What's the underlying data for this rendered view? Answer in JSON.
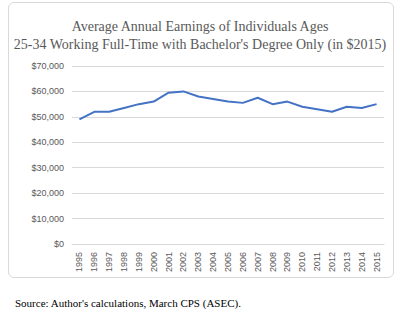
{
  "chart_data": {
    "type": "line",
    "title": "Average Annual Earnings of Individuals Ages\n25-34 Working Full-Time with Bachelor's Degree Only (in $2015)",
    "caption": "Source: Author's calculations, March CPS (ASEC).",
    "categories": [
      "1995",
      "1996",
      "1997",
      "1998",
      "1999",
      "2000",
      "2001",
      "2002",
      "2003",
      "2004",
      "2005",
      "2006",
      "2007",
      "2008",
      "2009",
      "2010",
      "2011",
      "2012",
      "2013",
      "2014",
      "2015"
    ],
    "values": [
      49000,
      52000,
      52000,
      53500,
      55000,
      56000,
      59500,
      60000,
      58000,
      57000,
      56000,
      55500,
      57500,
      55000,
      56000,
      54000,
      53000,
      52000,
      54000,
      53500,
      55000
    ],
    "color": "#4472c4",
    "ylim": [
      0,
      70000
    ],
    "yticks": [
      {
        "value": 0,
        "label": "$0"
      },
      {
        "value": 10000,
        "label": "$10,000"
      },
      {
        "value": 20000,
        "label": "$20,000"
      },
      {
        "value": 30000,
        "label": "$30,000"
      },
      {
        "value": 40000,
        "label": "$40,000"
      },
      {
        "value": 50000,
        "label": "$50,000"
      },
      {
        "value": 60000,
        "label": "$60,000"
      },
      {
        "value": 70000,
        "label": "$70,000"
      }
    ],
    "grid": true
  }
}
